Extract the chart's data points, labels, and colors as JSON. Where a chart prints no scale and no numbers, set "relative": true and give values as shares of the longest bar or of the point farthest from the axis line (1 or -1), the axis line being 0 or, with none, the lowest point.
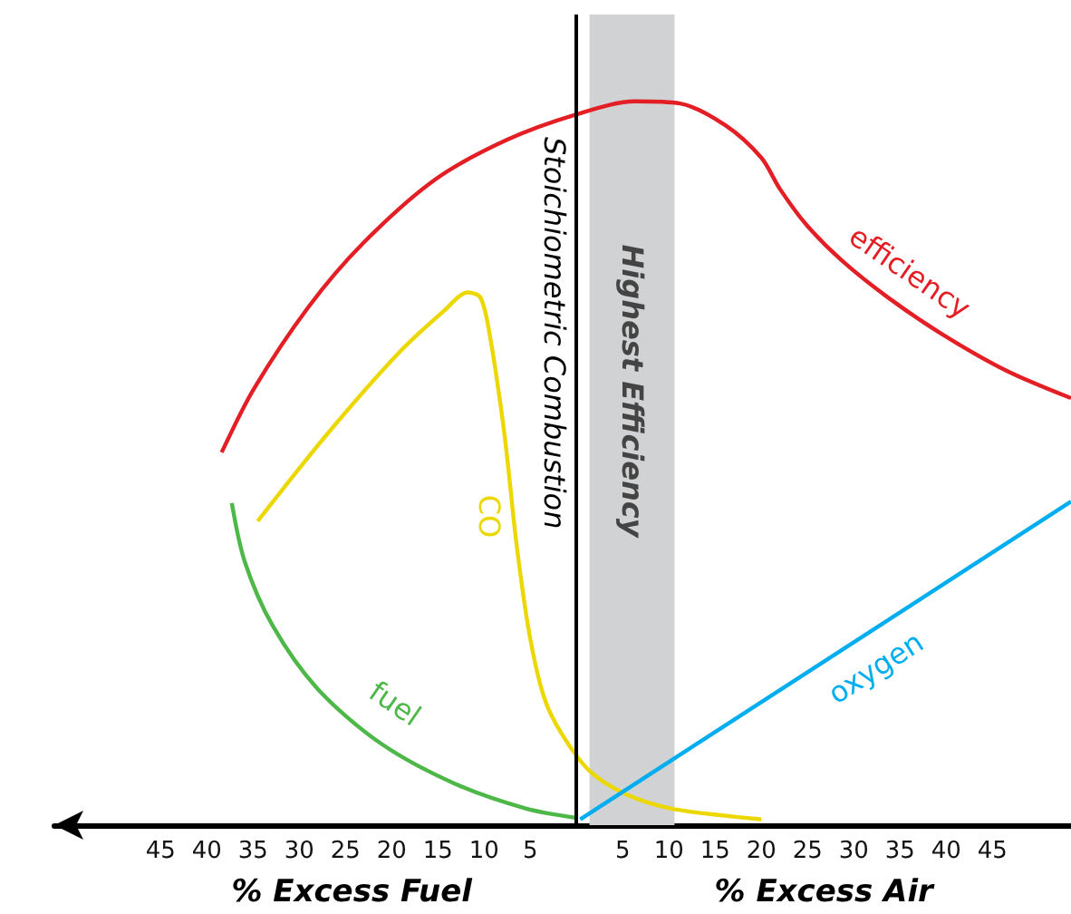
{
  "chart_data": {
    "type": "line",
    "relative": true,
    "marker": "none",
    "xlabel": "% Excess Air",
    "annotations": [
      "% Excess Fuel"
    ],
    "xlim": [
      -56.5,
      53.5
    ],
    "xticks": [
      {
        "value": -45,
        "label": "45"
      },
      {
        "value": -40,
        "label": "40"
      },
      {
        "value": -35,
        "label": "35"
      },
      {
        "value": -30,
        "label": "30"
      },
      {
        "value": -25,
        "label": "25"
      },
      {
        "value": -20,
        "label": "20"
      },
      {
        "value": -15,
        "label": "15"
      },
      {
        "value": -10,
        "label": "10"
      },
      {
        "value": -5,
        "label": "5"
      },
      5,
      10,
      15,
      20,
      25,
      30,
      35,
      40,
      45
    ],
    "series": [
      {
        "name": "efficiency",
        "color": "#e31e24",
        "x": [
          -38.4,
          -34.9,
          -29,
          -23.1,
          -15.3,
          -7.5,
          0,
          6.3,
          11.2,
          16.1,
          20,
          22,
          24.9,
          28.8,
          33.7,
          39.6,
          46.5,
          53.5
        ],
        "values": [
          0.515,
          0.603,
          0.716,
          0.804,
          0.892,
          0.947,
          0.982,
          1,
          0.997,
          0.967,
          0.922,
          0.879,
          0.829,
          0.779,
          0.729,
          0.678,
          0.628,
          0.59
        ]
      },
      {
        "name": "CO",
        "color": "#ecd800",
        "x": [
          -34.5,
          -27,
          -19.2,
          -14.3,
          -11.8,
          -10.4,
          -9.4,
          -7.8,
          -6.5,
          -5.1,
          -3.5,
          -1.6,
          1.4,
          5.3,
          10.2,
          16.1,
          20
        ],
        "values": [
          0.42,
          0.54,
          0.653,
          0.711,
          0.736,
          0.729,
          0.678,
          0.54,
          0.389,
          0.264,
          0.176,
          0.126,
          0.075,
          0.043,
          0.023,
          0.013,
          0.008
        ]
      },
      {
        "name": "fuel",
        "color": "#4db848",
        "x": [
          -37.3,
          -35.9,
          -32.9,
          -28,
          -21.2,
          -13.3,
          -5.5,
          0
        ],
        "values": [
          0.445,
          0.364,
          0.276,
          0.188,
          0.113,
          0.058,
          0.023,
          0.01
        ]
      },
      {
        "name": "oxygen",
        "color": "#00aeef",
        "x": [
          0.4,
          53.5
        ],
        "values": [
          0.008,
          0.447
        ]
      }
    ],
    "ref_lines": [
      {
        "axis": "x",
        "value": 0,
        "label": "Stoichiometric Combustion",
        "color": "#000000"
      }
    ],
    "bands": [
      {
        "axis": "x",
        "from": 1.4,
        "to": 10.6,
        "label": "Highest Efficiency",
        "color": "#d1d2d4"
      }
    ]
  }
}
